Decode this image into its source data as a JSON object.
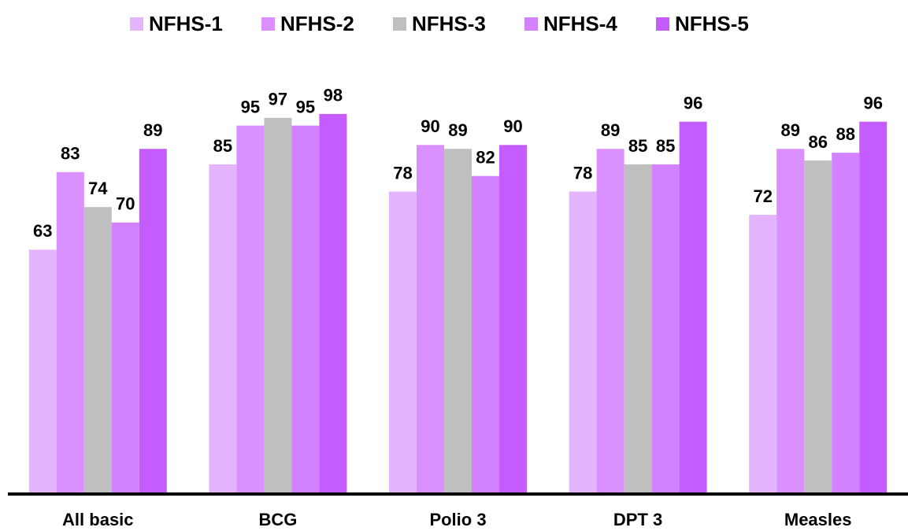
{
  "chart_data": {
    "type": "bar",
    "categories": [
      "All basic",
      "BCG",
      "Polio 3",
      "DPT 3",
      "Measles"
    ],
    "series": [
      {
        "name": "NFHS-1",
        "color": "#e4b4ff",
        "values": [
          63,
          85,
          78,
          78,
          72
        ]
      },
      {
        "name": "NFHS-2",
        "color": "#da90ff",
        "values": [
          83,
          95,
          90,
          89,
          89
        ]
      },
      {
        "name": "NFHS-3",
        "color": "#bfbfbf",
        "values": [
          74,
          97,
          89,
          85,
          86
        ]
      },
      {
        "name": "NFHS-4",
        "color": "#d282ff",
        "values": [
          70,
          95,
          82,
          85,
          88
        ]
      },
      {
        "name": "NFHS-5",
        "color": "#c55cff",
        "values": [
          89,
          98,
          90,
          96,
          96
        ]
      }
    ],
    "ylim": [
      0,
      100
    ],
    "legend": "top"
  }
}
